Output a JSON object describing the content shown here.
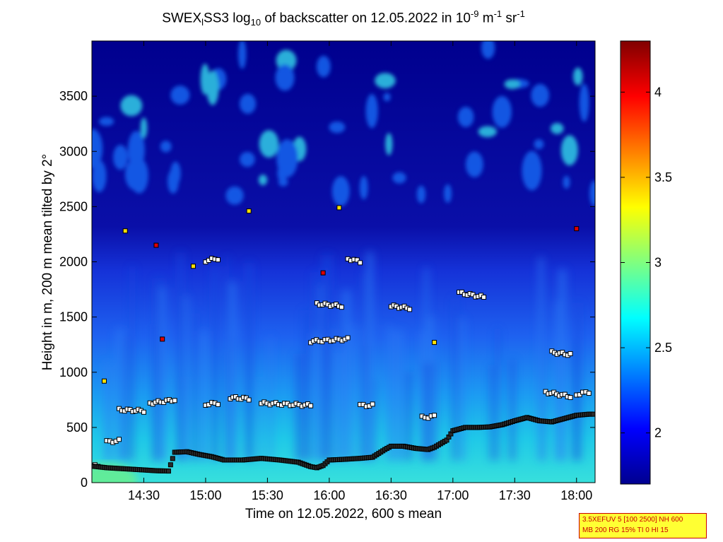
{
  "title": {
    "prefix": "SWEX",
    "sub1": "l",
    "mid": "SS3 log",
    "sub2": "10",
    "mid2": " of backscatter on 12.05.2022 in 10",
    "sup1": "-9",
    "mid3": " m",
    "sup2": "-1",
    "mid4": " sr",
    "sup3": "-1"
  },
  "info_box": {
    "line1": "3.5XEFUV 5 [100 2500] NH 600",
    "line2": "MB 200 RG 15% TI 0 HI 15"
  },
  "colors": {
    "colormap": "jet",
    "info_box_background": "#ffff33",
    "info_box_text": "#cc0000"
  },
  "chart_data": {
    "type": "heatmap",
    "xlabel": "Time on 12.05.2022, 600 s mean",
    "ylabel": "Height in m, 200 m mean tilted by 2°",
    "x_unit": "hours",
    "xlim": [
      14.08,
      18.15
    ],
    "ylim": [
      0,
      4000
    ],
    "x_ticks": [
      {
        "value": 14.5,
        "label": "14:30"
      },
      {
        "value": 15.0,
        "label": "15:00"
      },
      {
        "value": 15.5,
        "label": "15:30"
      },
      {
        "value": 16.0,
        "label": "16:00"
      },
      {
        "value": 16.5,
        "label": "16:30"
      },
      {
        "value": 17.0,
        "label": "17:00"
      },
      {
        "value": 17.5,
        "label": "17:30"
      },
      {
        "value": 18.0,
        "label": "18:00"
      }
    ],
    "y_ticks": [
      {
        "value": 0,
        "label": "0"
      },
      {
        "value": 500,
        "label": "500"
      },
      {
        "value": 1000,
        "label": "1000"
      },
      {
        "value": 1500,
        "label": "1500"
      },
      {
        "value": 2000,
        "label": "2000"
      },
      {
        "value": 2500,
        "label": "2500"
      },
      {
        "value": 3000,
        "label": "3000"
      },
      {
        "value": 3500,
        "label": "3500"
      }
    ],
    "colorbar": {
      "clim": [
        1.7,
        4.3
      ],
      "ticks": [
        {
          "value": 2,
          "label": "2"
        },
        {
          "value": 2.5,
          "label": "2.5"
        },
        {
          "value": 3,
          "label": "3"
        },
        {
          "value": 3.5,
          "label": "3.5"
        },
        {
          "value": 4,
          "label": "4"
        }
      ]
    },
    "grid": false,
    "mixing_layer_height": {
      "x": [
        14.08,
        14.2,
        14.35,
        14.5,
        14.6,
        14.7,
        14.75,
        14.85,
        14.95,
        15.05,
        15.15,
        15.3,
        15.45,
        15.6,
        15.75,
        15.85,
        15.9,
        15.95,
        16.0,
        16.1,
        16.25,
        16.35,
        16.45,
        16.5,
        16.6,
        16.7,
        16.8,
        16.85,
        16.95,
        17.0,
        17.1,
        17.2,
        17.3,
        17.4,
        17.5,
        17.6,
        17.7,
        17.8,
        17.9,
        18.0,
        18.1,
        18.15
      ],
      "y": [
        150,
        135,
        125,
        115,
        108,
        105,
        275,
        280,
        255,
        235,
        205,
        205,
        220,
        205,
        185,
        145,
        135,
        155,
        205,
        210,
        220,
        230,
        300,
        330,
        330,
        310,
        300,
        320,
        385,
        470,
        500,
        500,
        505,
        525,
        560,
        590,
        560,
        550,
        580,
        610,
        620,
        620
      ]
    },
    "layer_tops": [
      {
        "x": [
          14.08,
          14.13
        ],
        "y": [
          150,
          150
        ]
      },
      {
        "x": [
          14.2,
          14.3
        ],
        "y": [
          370,
          380
        ]
      },
      {
        "x": [
          14.3,
          14.5
        ],
        "y": [
          660,
          650
        ]
      },
      {
        "x": [
          14.55,
          14.75
        ],
        "y": [
          720,
          750
        ]
      },
      {
        "x": [
          15.0,
          15.1
        ],
        "y": [
          710,
          720
        ]
      },
      {
        "x": [
          15.2,
          15.35
        ],
        "y": [
          770,
          760
        ]
      },
      {
        "x": [
          15.45,
          15.85
        ],
        "y": [
          720,
          700
        ]
      },
      {
        "x": [
          16.25,
          16.35
        ],
        "y": [
          700,
          700
        ]
      },
      {
        "x": [
          16.75,
          16.85
        ],
        "y": [
          590,
          600
        ]
      },
      {
        "x": [
          17.75,
          17.95
        ],
        "y": [
          820,
          780
        ]
      },
      {
        "x": [
          18.0,
          18.1
        ],
        "y": [
          800,
          820
        ]
      },
      {
        "x": [
          15.85,
          16.15
        ],
        "y": [
          1280,
          1300
        ]
      },
      {
        "x": [
          16.5,
          16.65
        ],
        "y": [
          1600,
          1580
        ]
      },
      {
        "x": [
          17.05,
          17.25
        ],
        "y": [
          1720,
          1680
        ]
      },
      {
        "x": [
          17.8,
          17.95
        ],
        "y": [
          1180,
          1160
        ]
      },
      {
        "x": [
          15.9,
          16.1
        ],
        "y": [
          1620,
          1600
        ]
      },
      {
        "x": [
          16.15,
          16.25
        ],
        "y": [
          2030,
          2000
        ]
      },
      {
        "x": [
          15.0,
          15.1
        ],
        "y": [
          2010,
          2030
        ]
      }
    ],
    "aerosol_features": [
      {
        "x": 14.18,
        "y": 920,
        "strength": "high"
      },
      {
        "x": 14.35,
        "y": 2280,
        "strength": "high"
      },
      {
        "x": 14.6,
        "y": 2150,
        "strength": "very-high"
      },
      {
        "x": 14.65,
        "y": 1300,
        "strength": "very-high"
      },
      {
        "x": 14.9,
        "y": 1960,
        "strength": "high"
      },
      {
        "x": 15.35,
        "y": 2460,
        "strength": "high"
      },
      {
        "x": 15.95,
        "y": 1900,
        "strength": "very-high"
      },
      {
        "x": 16.08,
        "y": 2490,
        "strength": "high"
      },
      {
        "x": 16.85,
        "y": 1270,
        "strength": "high"
      },
      {
        "x": 18.0,
        "y": 2300,
        "strength": "very-high"
      }
    ]
  }
}
